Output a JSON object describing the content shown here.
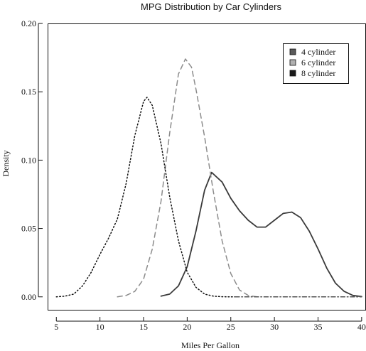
{
  "chart_data": {
    "type": "line",
    "title": "MPG Distribution by Car Cylinders",
    "xlabel": "Miles Per Gallon",
    "ylabel": "Density",
    "xlim": [
      4,
      40.5
    ],
    "ylim": [
      -0.01,
      0.2
    ],
    "xticks": [
      {
        "value": 5,
        "label": "5"
      },
      {
        "value": 10,
        "label": "10"
      },
      {
        "value": 15,
        "label": "15"
      },
      {
        "value": 20,
        "label": "20"
      },
      {
        "value": 25,
        "label": "25"
      },
      {
        "value": 30,
        "label": "30"
      },
      {
        "value": 35,
        "label": "35"
      },
      {
        "value": 40,
        "label": "40"
      }
    ],
    "yticks": [
      {
        "value": 0.0,
        "label": "0.00"
      },
      {
        "value": 0.05,
        "label": "0.05"
      },
      {
        "value": 0.1,
        "label": "0.10"
      },
      {
        "value": 0.15,
        "label": "0.15"
      },
      {
        "value": 0.2,
        "label": "0.20"
      }
    ],
    "legend_position": "top-right",
    "legend": [
      {
        "label": "4 cylinder",
        "fill": "#5a5a5a"
      },
      {
        "label": "6 cylinder",
        "fill": "#b0b0b0"
      },
      {
        "label": "8 cylinder",
        "fill": "#1a1a1a"
      }
    ],
    "series": [
      {
        "name": "4 cylinder",
        "style": "solid",
        "color": "#3a3a3a",
        "x": [
          17.0,
          18.0,
          19.0,
          20.0,
          21.0,
          22.0,
          22.8,
          24.0,
          25.0,
          26.0,
          27.0,
          28.0,
          29.0,
          30.0,
          31.0,
          32.0,
          33.0,
          34.0,
          35.0,
          36.0,
          37.0,
          38.0,
          39.0,
          40.0
        ],
        "y": [
          0.0005,
          0.002,
          0.008,
          0.022,
          0.048,
          0.078,
          0.091,
          0.084,
          0.072,
          0.063,
          0.056,
          0.051,
          0.051,
          0.056,
          0.061,
          0.062,
          0.058,
          0.048,
          0.035,
          0.021,
          0.01,
          0.004,
          0.001,
          0.0002
        ]
      },
      {
        "name": "6 cylinder",
        "style": "dashed",
        "color": "#8c8c8c",
        "x": [
          12.0,
          13.0,
          14.0,
          15.0,
          16.0,
          17.0,
          18.0,
          19.0,
          19.8,
          20.5,
          21.0,
          22.0,
          23.0,
          24.0,
          25.0,
          26.0,
          27.0,
          28.0
        ],
        "y": [
          0.0,
          0.001,
          0.004,
          0.013,
          0.035,
          0.07,
          0.12,
          0.163,
          0.174,
          0.168,
          0.152,
          0.117,
          0.077,
          0.041,
          0.017,
          0.005,
          0.001,
          0.0
        ]
      },
      {
        "name": "8 cylinder",
        "style": "dotted",
        "color": "#111111",
        "x": [
          5.0,
          6.0,
          7.0,
          8.0,
          9.0,
          10.0,
          11.0,
          12.0,
          13.0,
          14.0,
          15.0,
          15.4,
          16.0,
          17.0,
          18.0,
          19.0,
          20.0,
          21.0,
          22.0,
          23.0,
          24.0,
          25.0,
          26.0
        ],
        "y": [
          0.0,
          0.0005,
          0.002,
          0.008,
          0.018,
          0.031,
          0.043,
          0.057,
          0.083,
          0.118,
          0.143,
          0.146,
          0.14,
          0.112,
          0.073,
          0.041,
          0.018,
          0.007,
          0.002,
          0.0005,
          0.0001,
          0.0,
          0.0
        ]
      },
      {
        "name": "",
        "style": "dashdot",
        "color": "#555555",
        "x": [
          25.5,
          27.0,
          29.0,
          31.0,
          33.0,
          35.0,
          37.0,
          39.0,
          40.0
        ],
        "y": [
          0.0,
          0.0,
          0.0,
          0.0,
          0.0,
          0.0,
          0.0,
          0.0,
          0.0
        ]
      }
    ]
  }
}
